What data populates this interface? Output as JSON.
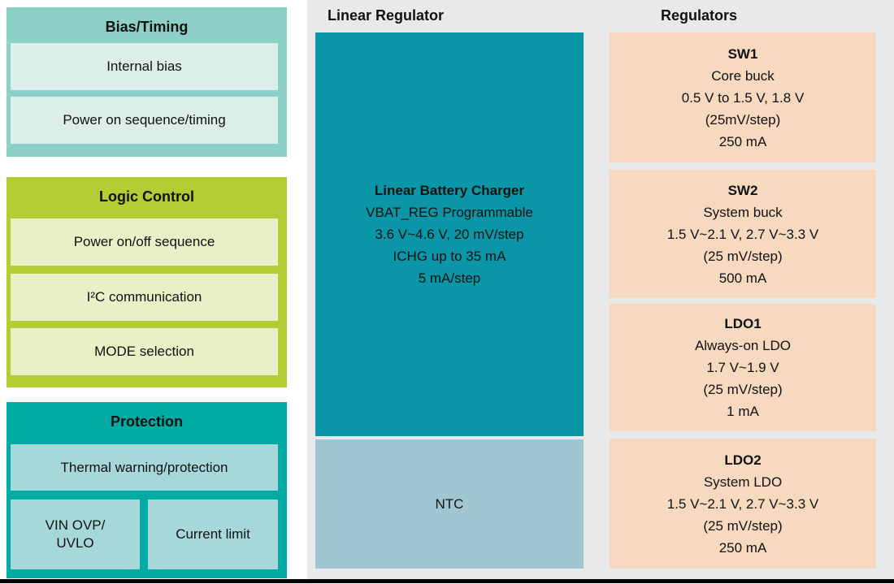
{
  "diagram": {
    "left": {
      "bias": {
        "title": "Bias/Timing",
        "items": [
          "Internal bias",
          "Power on sequence/timing"
        ]
      },
      "logic": {
        "title": "Logic Control",
        "items": [
          "Power on/off sequence",
          "I²C communication",
          "MODE selection"
        ]
      },
      "protection": {
        "title": "Protection",
        "item_full": "Thermal warning/protection",
        "item_left": "VIN OVP/\nUVLO",
        "item_right": "Current limit"
      }
    },
    "middle": {
      "title": "Linear Regulator",
      "charger": {
        "name": "Linear Battery Charger",
        "details": "VBAT_REG Programmable\n3.6 V~4.6 V, 20 mV/step\nICHG up to 35 mA\n5 mA/step"
      },
      "ntc": "NTC"
    },
    "right": {
      "title": "Regulators",
      "boxes": [
        {
          "name": "SW1",
          "details": "Core buck\n0.5 V to 1.5 V, 1.8 V\n(25mV/step)\n250 mA"
        },
        {
          "name": "SW2",
          "details": "System buck\n1.5 V~2.1 V, 2.7 V~3.3 V\n(25 mV/step)\n500 mA"
        },
        {
          "name": "LDO1",
          "details": "Always-on LDO\n1.7 V~1.9 V\n(25 mV/step)\n1 mA"
        },
        {
          "name": "LDO2",
          "details": "System LDO\n1.5 V~2.1 V, 2.7 V~3.3 V\n(25 mV/step)\n250 mA"
        }
      ]
    }
  },
  "colors": {
    "panel_bg": "#e8e9eb",
    "bias_outer": "#8dd0c7",
    "bias_inner": "#dceeea",
    "logic_outer": "#b5cd33",
    "logic_inner": "#e9efc6",
    "protection_outer": "#00aba3",
    "protection_inner": "#a6d8da",
    "charger_box": "#0a96a6",
    "ntc_box": "#a0c7d1",
    "regulator_box": "#f7d9c0",
    "bottom_bar": "#000000"
  }
}
